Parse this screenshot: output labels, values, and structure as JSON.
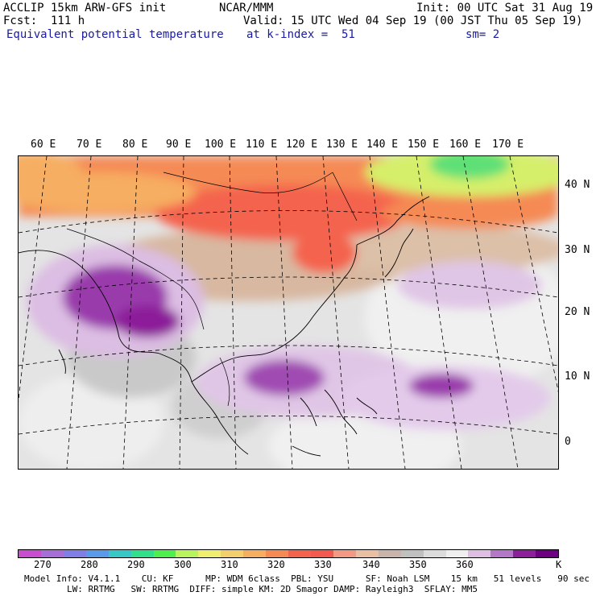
{
  "header": {
    "model": "ACCLIP 15km ARW-GFS init",
    "org": "NCAR/MMM",
    "init": "Init: 00 UTC Sat 31 Aug 19",
    "forecast": "Fcst:  111 h",
    "valid": "Valid: 15 UTC Wed 04 Sep 19 (00 JST Thu 05 Sep 19)",
    "field": "Equivalent potential temperature",
    "level": "at k-index =  51",
    "smooth": "sm= 2"
  },
  "map": {
    "longitude_labels": [
      "60 E",
      "70 E",
      "80 E",
      "90 E",
      "100 E",
      "110 E",
      "120 E",
      "130 E",
      "140 E",
      "150 E",
      "160 E",
      "170 E"
    ],
    "latitude_labels": [
      "40 N",
      "30 N",
      "20 N",
      "10 N",
      "0"
    ]
  },
  "colorbar": {
    "unit": "K",
    "tick_labels": [
      "270",
      "280",
      "290",
      "300",
      "310",
      "320",
      "330",
      "340",
      "350",
      "360"
    ],
    "colors": [
      "#c74fcf",
      "#a66fd8",
      "#7f7fe6",
      "#5b9ae8",
      "#36c7c7",
      "#33e08a",
      "#50ef50",
      "#b9f35e",
      "#eeee70",
      "#f4cf6e",
      "#f6ae62",
      "#f58a55",
      "#f4634d",
      "#f25a50",
      "#f49a84",
      "#eac0a5",
      "#c8b4aa",
      "#c0c0c0",
      "#dcdcdc",
      "#efefef",
      "#dfbee3",
      "#b478c8",
      "#8c1f9a",
      "#6c0080"
    ]
  },
  "model_info": {
    "line1": "Model Info: V4.1.1    CU: KF      MP: WDM 6class  PBL: YSU      SF: Noah LSM    15 km   51 levels   90 sec",
    "line2": "LW: RRTMG   SW: RRTMG  DIFF: simple KM: 2D Smagor DAMP: Rayleigh3  SFLAY: MM5"
  }
}
